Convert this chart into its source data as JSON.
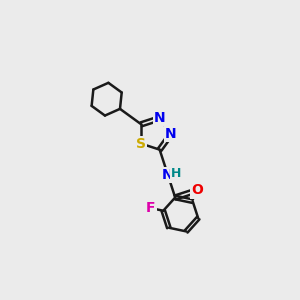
{
  "background_color": "#ebebeb",
  "bond_color": "#1a1a1a",
  "atom_colors": {
    "S": "#ccaa00",
    "N": "#0000ee",
    "O": "#ee0000",
    "F": "#dd00aa",
    "H": "#008888",
    "C": "#1a1a1a"
  },
  "bond_width": 1.8,
  "dbo": 0.09,
  "xlim": [
    0,
    10
  ],
  "ylim": [
    0,
    13
  ],
  "figsize": [
    3.0,
    3.0
  ],
  "dpi": 100
}
